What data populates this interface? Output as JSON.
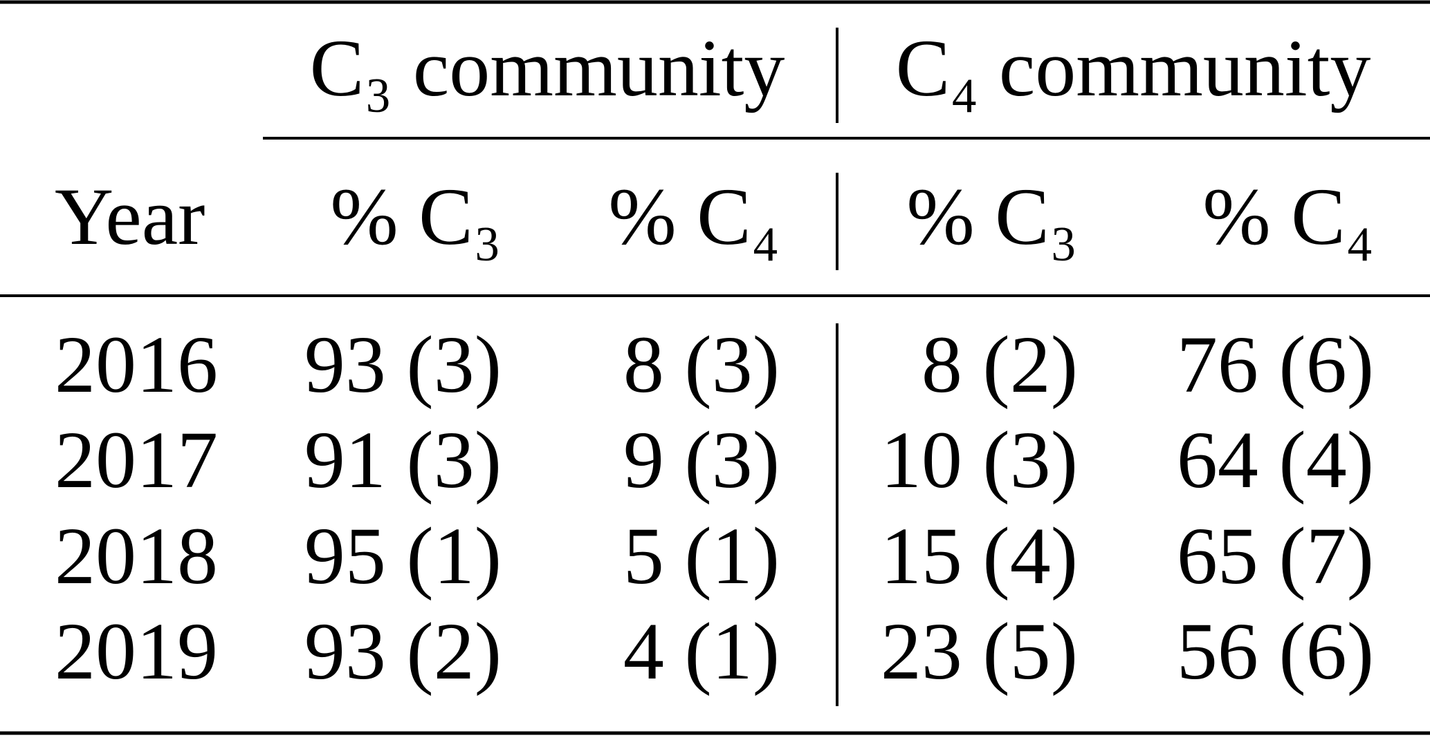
{
  "table": {
    "group_headers": [
      "C₃ community",
      "C₄ community"
    ],
    "columns": [
      "Year",
      "% C₃",
      "% C₄",
      "% C₃",
      "% C₄"
    ],
    "rows": [
      [
        "2016",
        "93 (3)",
        "8 (3)",
        "8 (2)",
        "76 (6)"
      ],
      [
        "2017",
        "91 (3)",
        "9 (3)",
        "10 (3)",
        "64 (4)"
      ],
      [
        "2018",
        "95 (1)",
        "5 (1)",
        "15 (4)",
        "65 (7)"
      ],
      [
        "2019",
        "93 (2)",
        "4 (1)",
        "23 (5)",
        "56 (6)"
      ]
    ]
  }
}
